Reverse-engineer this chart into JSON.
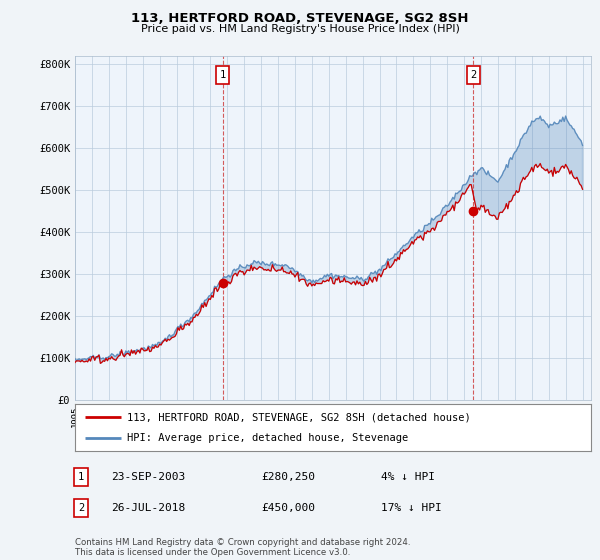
{
  "title_line1": "113, HERTFORD ROAD, STEVENAGE, SG2 8SH",
  "title_line2": "Price paid vs. HM Land Registry's House Price Index (HPI)",
  "ylabel_ticks": [
    "£0",
    "£100K",
    "£200K",
    "£300K",
    "£400K",
    "£500K",
    "£600K",
    "£700K",
    "£800K"
  ],
  "ylabel_values": [
    0,
    100000,
    200000,
    300000,
    400000,
    500000,
    600000,
    700000,
    800000
  ],
  "ylim": [
    0,
    820000
  ],
  "x_start_year": 1995,
  "x_end_year": 2025,
  "hpi_color": "#5588bb",
  "price_color": "#cc0000",
  "fill_color": "#ddeeff",
  "annotation1": {
    "label": "1",
    "year": 2003.72,
    "price": 280250,
    "text": "23-SEP-2003",
    "amount": "£280,250",
    "pct": "4% ↓ HPI"
  },
  "annotation2": {
    "label": "2",
    "year": 2018.55,
    "price": 450000,
    "text": "26-JUL-2018",
    "amount": "£450,000",
    "pct": "17% ↓ HPI"
  },
  "legend_line1": "113, HERTFORD ROAD, STEVENAGE, SG2 8SH (detached house)",
  "legend_line2": "HPI: Average price, detached house, Stevenage",
  "footer": "Contains HM Land Registry data © Crown copyright and database right 2024.\nThis data is licensed under the Open Government Licence v3.0.",
  "background_color": "#f0f4f8",
  "plot_bg_color": "#eef4fb",
  "grid_color": "#bbccdd"
}
